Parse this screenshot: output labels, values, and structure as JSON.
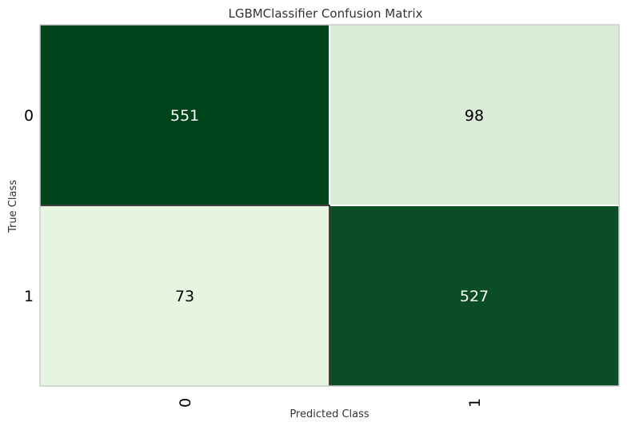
{
  "chart_data": {
    "type": "heatmap",
    "title": "LGBMClassifier Confusion Matrix",
    "xlabel": "Predicted Class",
    "ylabel": "True Class",
    "x_categories": [
      "0",
      "1"
    ],
    "y_categories": [
      "0",
      "1"
    ],
    "values": [
      [
        551,
        98
      ],
      [
        73,
        527
      ]
    ],
    "colors": {
      "high": "#00441b",
      "low": "#e5f5e0",
      "high_text": "#ffffff",
      "low_text": "#000000",
      "frame": "#cccccc",
      "title": "#333333"
    }
  }
}
